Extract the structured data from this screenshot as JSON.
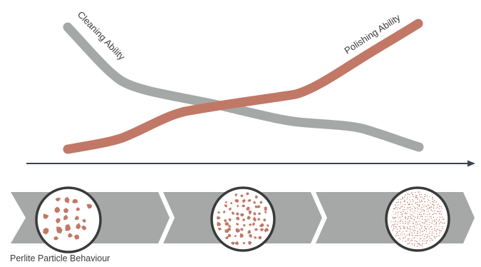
{
  "curves": [
    {
      "label": "Cleaning Ability",
      "color": "#a5a8a6"
    },
    {
      "label": "Polishing Ability",
      "color": "#c17866"
    }
  ],
  "axis_color": "#3a4450",
  "band": {
    "color": "#a5a8a6",
    "stage_count": 3
  },
  "particles": {
    "color": "#c17866",
    "ring_color": "#3a3a3a",
    "stages": [
      {
        "size": "large"
      },
      {
        "size": "medium"
      },
      {
        "size": "fine"
      }
    ]
  },
  "caption": "Perlite Particle Behaviour"
}
